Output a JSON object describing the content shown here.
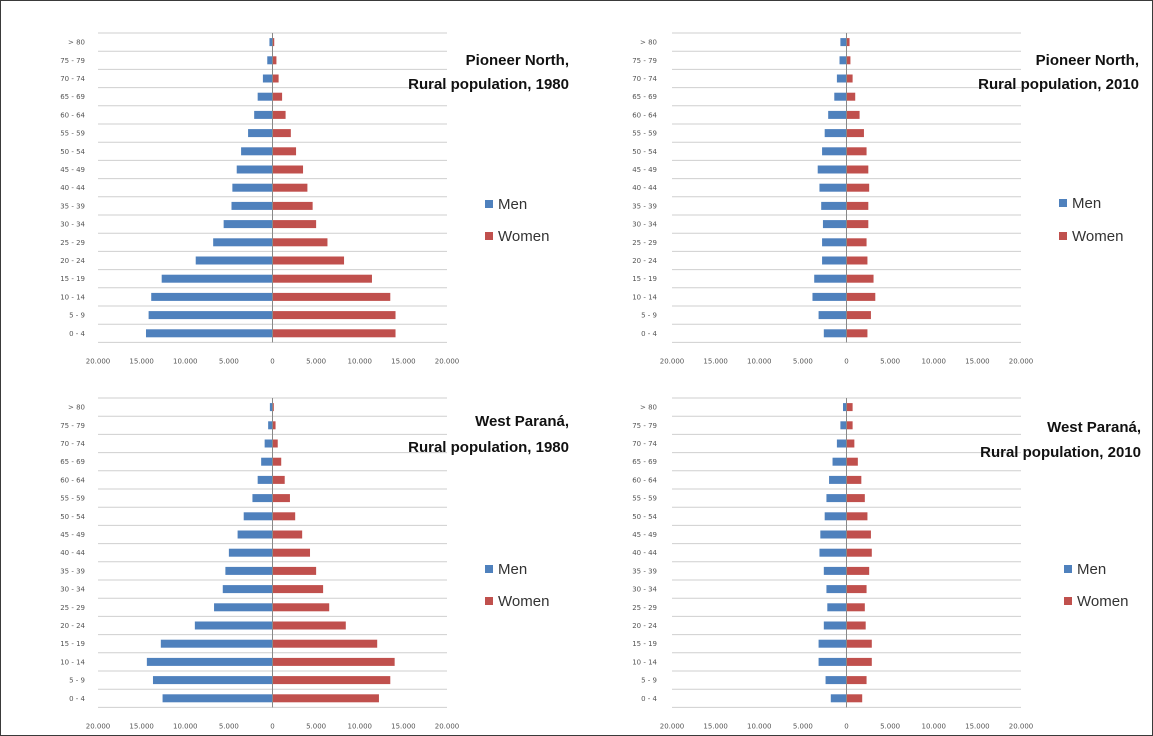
{
  "colors": {
    "men": "#4f81bd",
    "women": "#c0504d",
    "grid": "#cfcfcf",
    "axis": "#888888"
  },
  "chart_data": [
    {
      "type": "bar",
      "orientation": "horizontal-pyramid",
      "title_lines": [
        "Pioneer North,",
        "Rural population,  1980"
      ],
      "categories": [
        "0 - 4",
        "5 - 9",
        "10 - 14",
        "15 - 19",
        "20 - 24",
        "25 - 29",
        "30 - 34",
        "35 - 39",
        "40 - 44",
        "45 - 49",
        "50 - 54",
        "55 - 59",
        "60 - 64",
        "65 - 69",
        "70 - 74",
        "75 - 79",
        "> 80"
      ],
      "series": [
        {
          "name": "Men",
          "values": [
            14500,
            14200,
            13900,
            12700,
            8800,
            6800,
            5600,
            4700,
            4600,
            4100,
            3600,
            2800,
            2100,
            1700,
            1100,
            600,
            350
          ]
        },
        {
          "name": "Women",
          "values": [
            14100,
            14100,
            13500,
            11400,
            8200,
            6300,
            5000,
            4600,
            4000,
            3500,
            2700,
            2100,
            1500,
            1100,
            700,
            450,
            200
          ]
        }
      ],
      "x_ticks": [
        "20.000",
        "15.000",
        "10.000",
        "5.000",
        "0",
        "5.000",
        "10.000",
        "15.000",
        "20.000"
      ],
      "xlim": [
        -20000,
        20000
      ]
    },
    {
      "type": "bar",
      "orientation": "horizontal-pyramid",
      "title_lines": [
        "Pioneer North,",
        "Rural population,  2010"
      ],
      "categories": [
        "0 - 4",
        "5 - 9",
        "10 - 14",
        "15 - 19",
        "20 - 24",
        "25 - 29",
        "30 - 34",
        "35 - 39",
        "40 - 44",
        "45 - 49",
        "50 - 54",
        "55 - 59",
        "60 - 64",
        "65 - 69",
        "70 - 74",
        "75 - 79",
        "> 80"
      ],
      "series": [
        {
          "name": "Men",
          "values": [
            2600,
            3200,
            3900,
            3700,
            2800,
            2800,
            2700,
            2900,
            3100,
            3300,
            2800,
            2500,
            2100,
            1400,
            1100,
            800,
            700
          ]
        },
        {
          "name": "Women",
          "values": [
            2400,
            2800,
            3300,
            3100,
            2400,
            2300,
            2500,
            2500,
            2600,
            2500,
            2300,
            2000,
            1500,
            1000,
            700,
            450,
            350
          ]
        }
      ],
      "x_ticks": [
        "20.000",
        "15.000",
        "10.000",
        "5.000",
        "0",
        "5.000",
        "10.000",
        "15.000",
        "20.000"
      ],
      "xlim": [
        -20000,
        20000
      ]
    },
    {
      "type": "bar",
      "orientation": "horizontal-pyramid",
      "title_lines": [
        "West Paraná,",
        "Rural population, 1980"
      ],
      "categories": [
        "0 - 4",
        "5 - 9",
        "10 - 14",
        "15 - 19",
        "20 - 24",
        "25 - 29",
        "30 - 34",
        "35 - 39",
        "40 - 44",
        "45 - 49",
        "50 - 54",
        "55 - 59",
        "60 - 64",
        "65 - 69",
        "70 - 74",
        "75 - 79",
        "> 80"
      ],
      "series": [
        {
          "name": "Men",
          "values": [
            12600,
            13700,
            14400,
            12800,
            8900,
            6700,
            5700,
            5400,
            5000,
            4000,
            3300,
            2300,
            1700,
            1300,
            900,
            500,
            300
          ]
        },
        {
          "name": "Women",
          "values": [
            12200,
            13500,
            14000,
            12000,
            8400,
            6500,
            5800,
            5000,
            4300,
            3400,
            2600,
            2000,
            1400,
            1000,
            600,
            350,
            150
          ]
        }
      ],
      "x_ticks": [
        "20.000",
        "15.000",
        "10.000",
        "5.000",
        "0",
        "5.000",
        "10.000",
        "15.000",
        "20.000"
      ],
      "xlim": [
        -20000,
        20000
      ]
    },
    {
      "type": "bar",
      "orientation": "horizontal-pyramid",
      "title_lines": [
        "West Paraná,",
        "Rural population,  2010"
      ],
      "categories": [
        "0 - 4",
        "5 - 9",
        "10 - 14",
        "15 - 19",
        "20 - 24",
        "25 - 29",
        "30 - 34",
        "35 - 39",
        "40 - 44",
        "45 - 49",
        "50 - 54",
        "55 - 59",
        "60 - 64",
        "65 - 69",
        "70 - 74",
        "75 - 79",
        "> 80"
      ],
      "series": [
        {
          "name": "Men",
          "values": [
            1800,
            2400,
            3200,
            3200,
            2600,
            2200,
            2300,
            2600,
            3100,
            3000,
            2500,
            2300,
            2000,
            1600,
            1100,
            700,
            400
          ]
        },
        {
          "name": "Women",
          "values": [
            1800,
            2300,
            2900,
            2900,
            2200,
            2100,
            2300,
            2600,
            2900,
            2800,
            2400,
            2100,
            1700,
            1300,
            900,
            700,
            700
          ]
        }
      ],
      "x_ticks": [
        "20.000",
        "15.000",
        "10.000",
        "5.000",
        "0",
        "5.000",
        "10.000",
        "15.000",
        "20.000"
      ],
      "xlim": [
        -20000,
        20000
      ]
    }
  ]
}
